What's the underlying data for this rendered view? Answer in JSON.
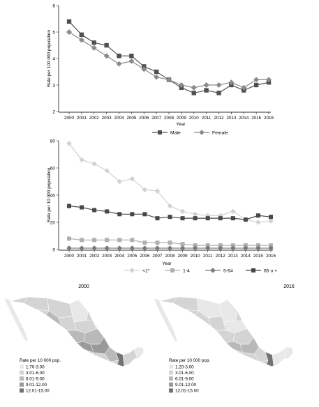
{
  "chart_data": [
    {
      "type": "line",
      "title": "",
      "xlabel": "Year",
      "ylabel": "Rate per 100 000 population",
      "categories": [
        "2000",
        "2001",
        "2002",
        "2003",
        "2004",
        "2005",
        "2006",
        "2007",
        "2008",
        "2009",
        "2010",
        "2011",
        "2012",
        "2013",
        "2014",
        "2015",
        "2016"
      ],
      "ylim": [
        2,
        6
      ],
      "yticks": [
        "2",
        "3",
        "4",
        "5",
        "6"
      ],
      "series": [
        {
          "name": "Male",
          "marker": "square",
          "color": "#505050",
          "values": [
            5.4,
            4.9,
            4.6,
            4.5,
            4.1,
            4.1,
            3.7,
            3.5,
            3.2,
            2.9,
            2.7,
            2.8,
            2.7,
            3.0,
            2.8,
            3.0,
            3.1
          ]
        },
        {
          "name": "Female",
          "marker": "diamond",
          "color": "#8a8a8a",
          "values": [
            5.0,
            4.7,
            4.4,
            4.1,
            3.8,
            3.9,
            3.6,
            3.3,
            3.2,
            3.0,
            2.9,
            3.0,
            3.0,
            3.1,
            2.9,
            3.2,
            3.2
          ]
        }
      ]
    },
    {
      "type": "line",
      "title": "",
      "xlabel": "Year",
      "ylabel": "Rate per 10 000 population",
      "categories": [
        "2000",
        "2001",
        "2002",
        "2003",
        "2004",
        "2005",
        "2006",
        "2007",
        "2008",
        "2009",
        "2010",
        "2011",
        "2012",
        "2013",
        "2014",
        "2015",
        "2016"
      ],
      "ylim": [
        0,
        80
      ],
      "yticks": [
        "0",
        "20",
        "40",
        "60",
        "80"
      ],
      "series": [
        {
          "name": "<1*",
          "marker": "diamond",
          "color": "#d2d2d2",
          "values": [
            78,
            66,
            63,
            58,
            50,
            52,
            44,
            43,
            32,
            28,
            26,
            25,
            25,
            28,
            22,
            20,
            21
          ]
        },
        {
          "name": "1-4",
          "marker": "square",
          "color": "#b0b0b0",
          "values": [
            8,
            7,
            7,
            7,
            7,
            7,
            5,
            5,
            5,
            4,
            3,
            3,
            3,
            3,
            3,
            3,
            3
          ]
        },
        {
          "name": "5-64",
          "marker": "diamond",
          "color": "#7a7a7a",
          "values": [
            1,
            1,
            1,
            1,
            1,
            1,
            1,
            1,
            1,
            1,
            1,
            1,
            1,
            1,
            1,
            1,
            1
          ]
        },
        {
          "name": "65 o +",
          "marker": "square",
          "color": "#474747",
          "values": [
            32,
            31,
            29,
            28,
            26,
            26,
            26,
            23,
            24,
            23,
            23,
            23,
            23,
            23,
            22,
            25,
            24
          ]
        }
      ]
    }
  ],
  "maps": [
    {
      "year": "2000",
      "legend_title": "Rate per 10 000 pop.",
      "legend": [
        "1.70-3.00",
        "3.01-6.00",
        "6.01-9.00",
        "9.01-12.00",
        "12.01-15.00"
      ]
    },
    {
      "year": "2016",
      "legend_title": "Rate per 10 000 pop.",
      "legend": [
        "1.20-3.00",
        "3.01-6.00",
        "6.01-9.00",
        "9.01-12.00",
        "12.01-15.00"
      ]
    }
  ],
  "map_shades": [
    "#e8e8e8",
    "#d4d4d4",
    "#b9b9b9",
    "#9a9a9a",
    "#737373"
  ]
}
